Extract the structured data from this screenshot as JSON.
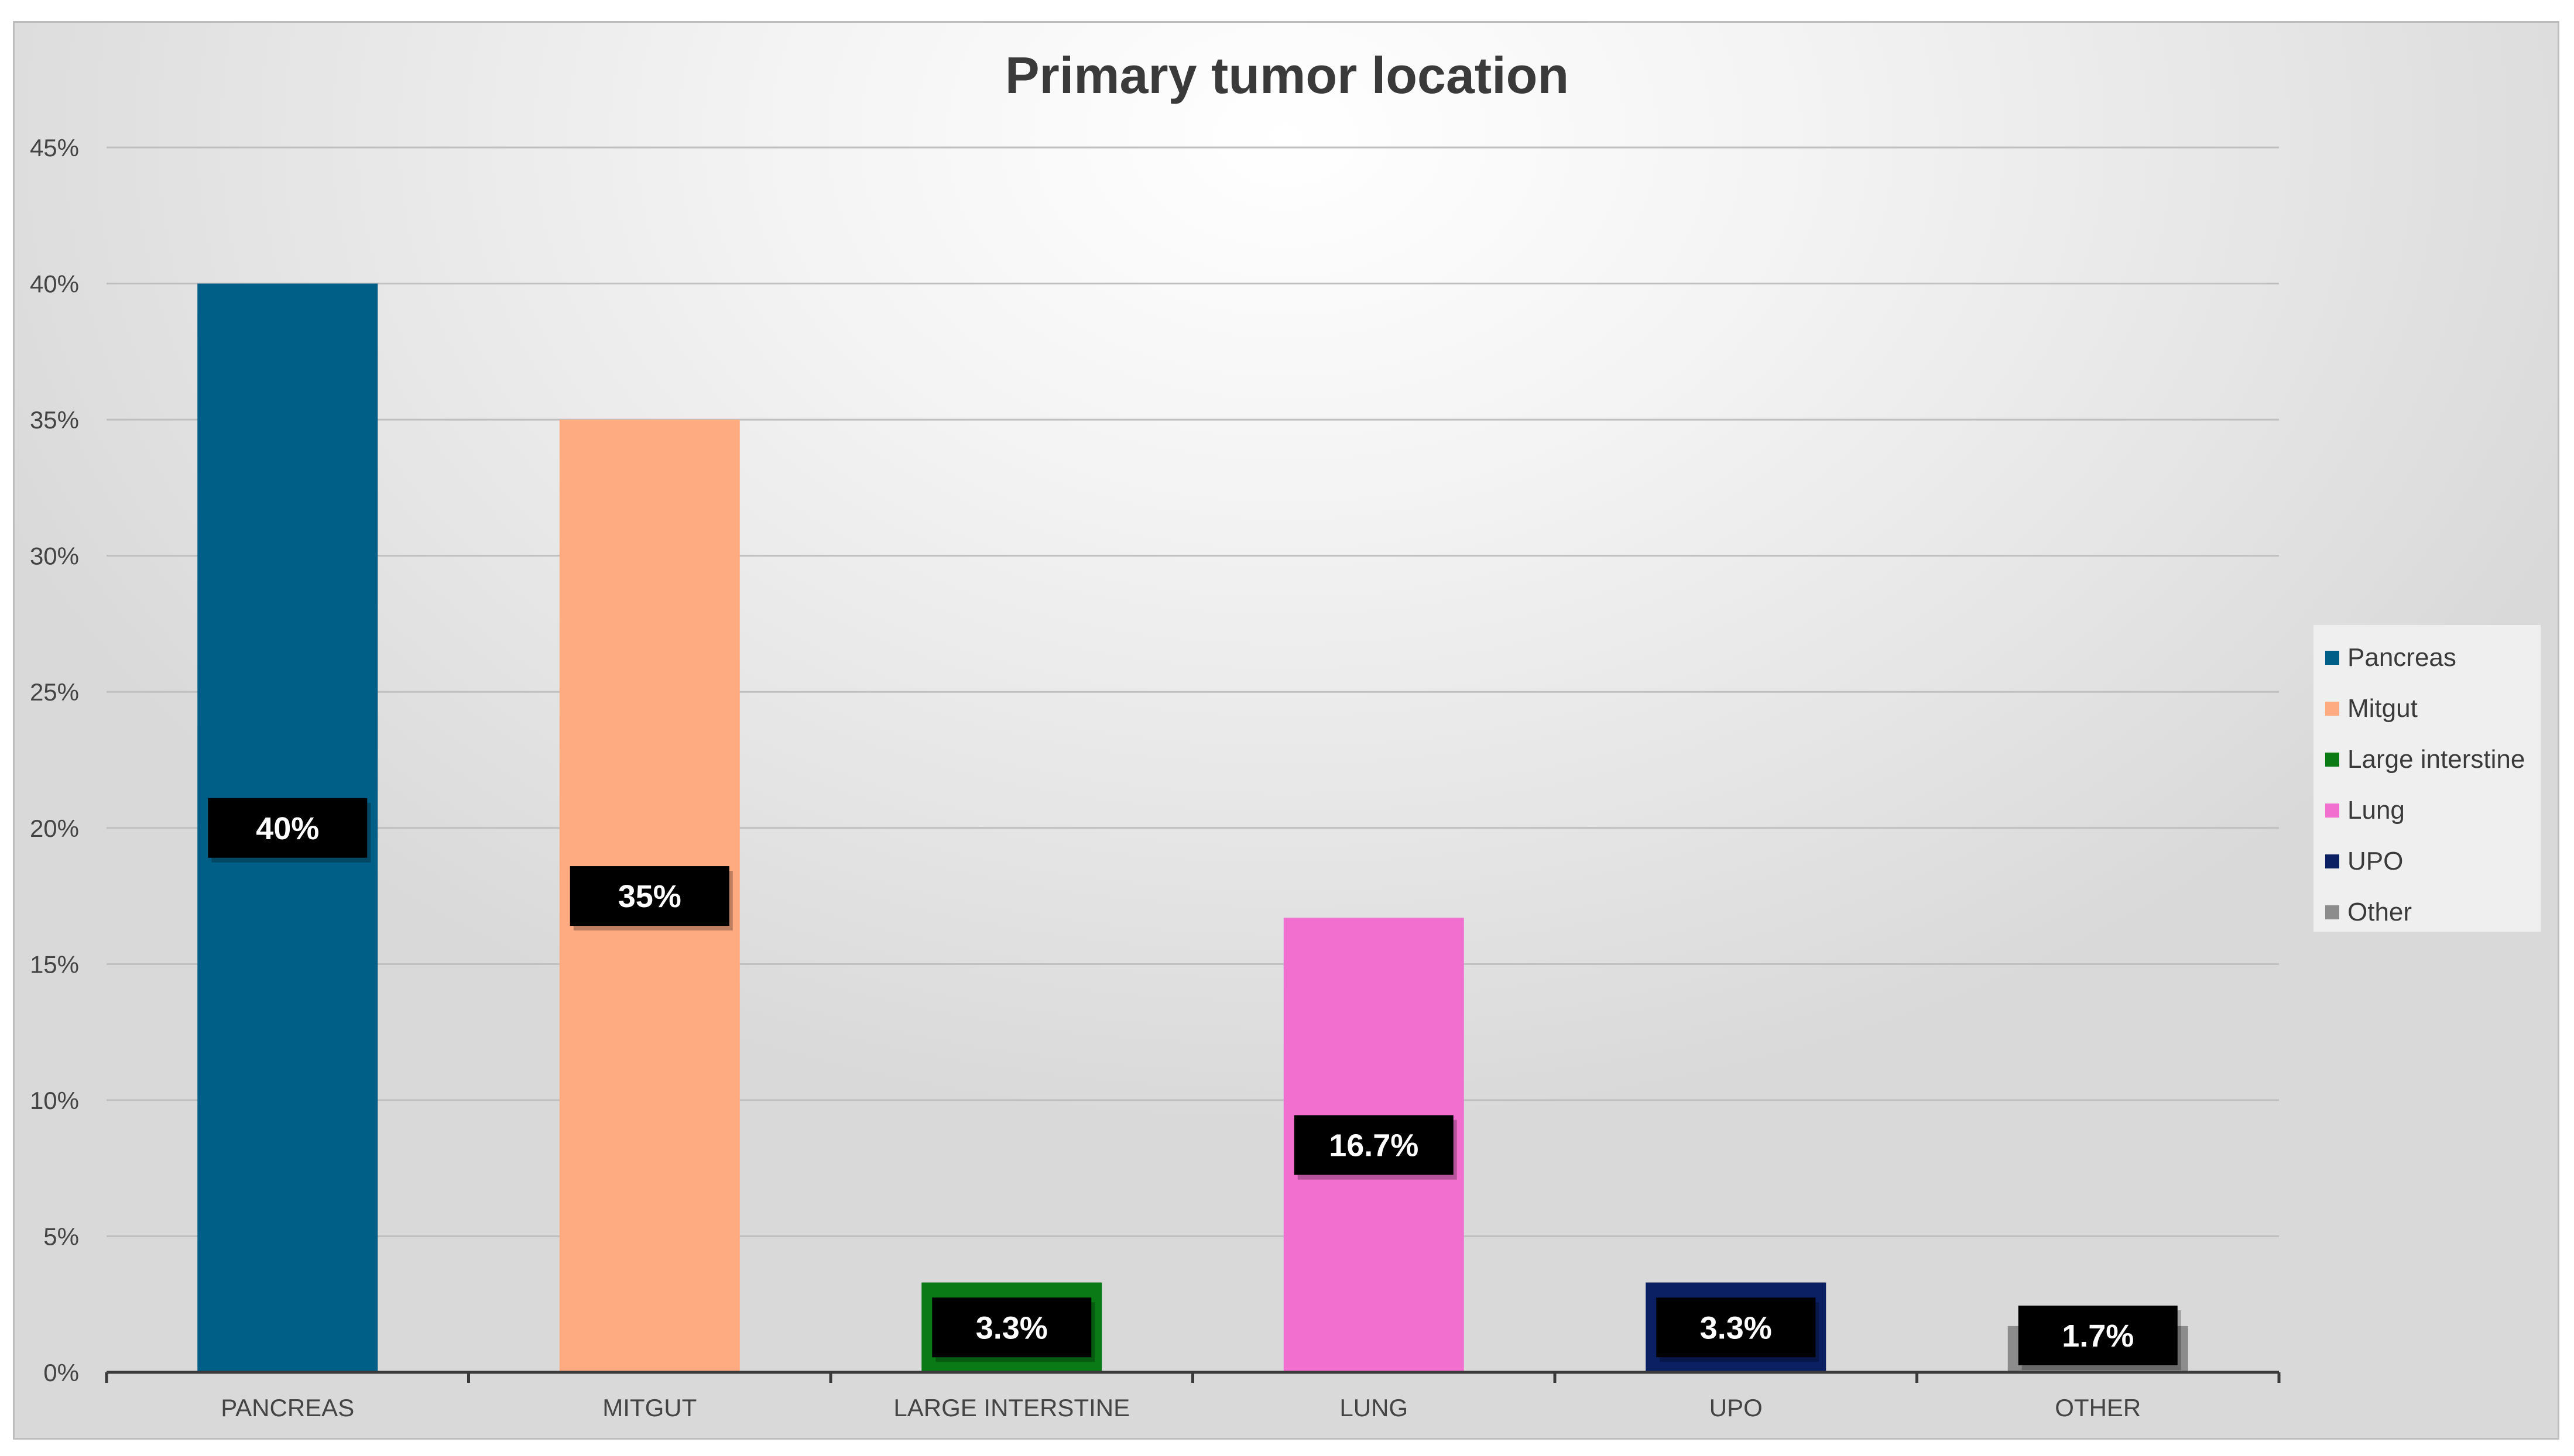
{
  "chart_data": {
    "type": "bar",
    "title": "Primary tumor location",
    "xlabel": "",
    "ylabel": "",
    "categories": [
      "PANCREAS",
      "MITGUT",
      "LARGE INTERSTINE",
      "LUNG",
      "UPO",
      "OTHER"
    ],
    "values": [
      40,
      35,
      3.3,
      16.7,
      3.3,
      1.7
    ],
    "data_labels": [
      "40%",
      "35%",
      "3.3%",
      "16.7%",
      "3.3%",
      "1.7%"
    ],
    "colors": [
      "#005f86",
      "#ffab82",
      "#0a7a16",
      "#f26fd0",
      "#0b1f63",
      "#8c8c8c"
    ],
    "ylim": [
      0,
      45
    ],
    "yticks": [
      0,
      5,
      10,
      15,
      20,
      25,
      30,
      35,
      40,
      45
    ],
    "ytick_labels": [
      "0%",
      "5%",
      "10%",
      "15%",
      "20%",
      "25%",
      "30%",
      "35%",
      "40%",
      "45%"
    ],
    "grid": true,
    "legend": {
      "position": "right",
      "entries": [
        "Pancreas",
        "Mitgut",
        "Large interstine",
        "Lung",
        "UPO",
        "Other"
      ]
    }
  }
}
